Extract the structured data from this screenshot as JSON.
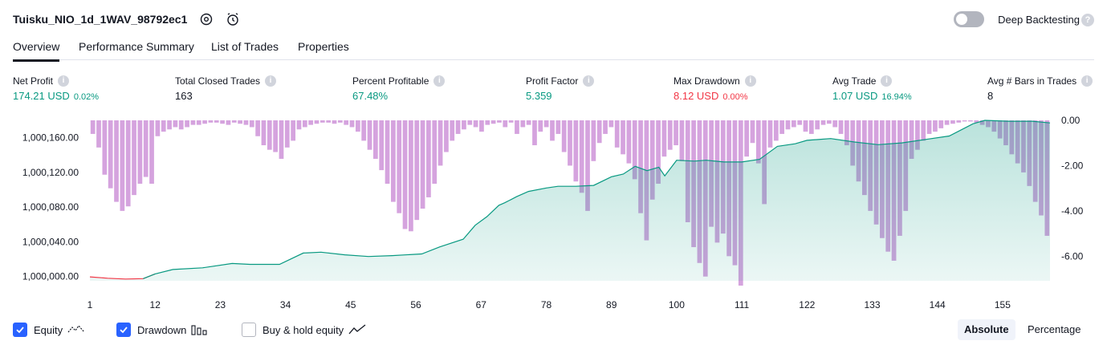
{
  "header": {
    "title": "Tuisku_NIO_1d_1WAV_98792ec1",
    "deep_backtesting_label": "Deep Backtesting",
    "help_glyph": "?"
  },
  "tabs": [
    {
      "label": "Overview",
      "active": true
    },
    {
      "label": "Performance Summary",
      "active": false
    },
    {
      "label": "List of Trades",
      "active": false
    },
    {
      "label": "Properties",
      "active": false
    }
  ],
  "stats": [
    {
      "label": "Net Profit",
      "value": "174.21 USD",
      "sub": "0.02%",
      "color": "#089981"
    },
    {
      "label": "Total Closed Trades",
      "value": "163",
      "sub": "",
      "color": "#131722"
    },
    {
      "label": "Percent Profitable",
      "value": "67.48%",
      "sub": "",
      "color": "#089981"
    },
    {
      "label": "Profit Factor",
      "value": "5.359",
      "sub": "",
      "color": "#089981"
    },
    {
      "label": "Max Drawdown",
      "value": "8.12 USD",
      "sub": "0.00%",
      "color": "#f23645"
    },
    {
      "label": "Avg Trade",
      "value": "1.07 USD",
      "sub": "16.94%",
      "color": "#089981"
    },
    {
      "label": "Avg # Bars in Trades",
      "value": "8",
      "sub": "",
      "color": "#131722"
    }
  ],
  "info_glyph": "i",
  "chart_data": {
    "type": "area",
    "x_ticks": [
      1,
      12,
      23,
      34,
      45,
      56,
      67,
      78,
      89,
      100,
      111,
      122,
      133,
      144,
      155
    ],
    "x_range": [
      1,
      163
    ],
    "left_axis": {
      "ticks": [
        "1,000,000.00",
        "1,000,040.00",
        "1,000,080.00",
        "1,000,120.00",
        "1,000,160.00"
      ],
      "tick_values": [
        1000000,
        1000040,
        1000080,
        1000120,
        1000160
      ],
      "range": [
        999995,
        1000180
      ]
    },
    "right_axis": {
      "ticks": [
        "0.00",
        "-2.00",
        "-4.00",
        "-6.00"
      ],
      "tick_values": [
        0,
        -2,
        -4,
        -6
      ],
      "range": [
        -7.3,
        0
      ]
    },
    "series": [
      {
        "name": "Equity",
        "axis": "left",
        "color": "#089981",
        "negative_color": "#f23645",
        "x": [
          1,
          4,
          7,
          10,
          12,
          15,
          20,
          25,
          28,
          33,
          37,
          40,
          44,
          48,
          52,
          57,
          60,
          64,
          66,
          68,
          70,
          71,
          73,
          75,
          78,
          80,
          83,
          86,
          89,
          91,
          93,
          95,
          97,
          98,
          100,
          103,
          105,
          108,
          111,
          114,
          117,
          120,
          122,
          126,
          130,
          134,
          138,
          142,
          146,
          150,
          152,
          156,
          160,
          163
        ],
        "y": [
          999999.5,
          999998,
          999997,
          999997.5,
          1000003,
          1000008,
          1000010,
          1000015,
          1000014,
          1000014,
          1000027,
          1000028,
          1000025,
          1000023,
          1000024,
          1000026,
          1000034,
          1000043,
          1000059,
          1000069,
          1000082,
          1000085,
          1000092,
          1000098,
          1000102,
          1000104,
          1000104,
          1000105,
          1000115,
          1000118,
          1000127,
          1000122,
          1000126,
          1000116,
          1000134,
          1000133,
          1000134,
          1000132,
          1000132,
          1000135,
          1000150,
          1000153,
          1000157,
          1000159,
          1000155,
          1000152,
          1000154,
          1000158,
          1000162,
          1000176,
          1000180,
          1000179,
          1000179,
          1000177
        ]
      },
      {
        "name": "Drawdown",
        "axis": "right",
        "color": "#ce93d8",
        "values": [
          -0.6,
          -1.2,
          -2.4,
          -3.0,
          -3.6,
          -4.0,
          -3.8,
          -3.3,
          -2.8,
          -2.5,
          -2.8,
          -0.7,
          -0.5,
          -0.4,
          -0.3,
          -0.4,
          -0.3,
          -0.2,
          -0.2,
          -0.15,
          -0.1,
          -0.1,
          -0.15,
          -0.2,
          -0.1,
          -0.15,
          -0.2,
          -0.3,
          -0.7,
          -1.1,
          -1.3,
          -1.4,
          -1.7,
          -1.2,
          -0.9,
          -0.4,
          -0.3,
          -0.2,
          -0.15,
          -0.1,
          -0.1,
          -0.15,
          -0.1,
          -0.2,
          -0.3,
          -0.5,
          -0.9,
          -1.3,
          -1.7,
          -2.2,
          -2.8,
          -3.6,
          -4.1,
          -4.8,
          -4.9,
          -4.4,
          -3.9,
          -3.4,
          -2.8,
          -2.0,
          -1.4,
          -0.9,
          -0.6,
          -0.4,
          -0.2,
          -0.3,
          -0.5,
          -0.2,
          -0.15,
          -0.1,
          -0.3,
          -0.1,
          -0.6,
          -0.3,
          -0.2,
          -1.1,
          -0.5,
          -0.3,
          -0.9,
          -0.6,
          -1.4,
          -2.0,
          -2.7,
          -3.2,
          -4.0,
          -1.8,
          -1.0,
          -0.6,
          -0.3,
          -1.2,
          -1.5,
          -1.9,
          -2.6,
          -4.1,
          -5.3,
          -3.5,
          -2.8,
          -1.6,
          -1.3,
          -1.1,
          -1.8,
          -4.5,
          -5.6,
          -6.3,
          -6.9,
          -4.7,
          -5.4,
          -5.0,
          -6.0,
          -6.4,
          -7.3,
          -1.6,
          -1.0,
          -1.9,
          -3.7,
          -1.2,
          -0.9,
          -0.6,
          -0.4,
          -0.3,
          -0.2,
          -0.5,
          -0.6,
          -0.4,
          -0.2,
          -0.15,
          -0.3,
          -0.6,
          -1.1,
          -2.0,
          -2.7,
          -3.3,
          -4.0,
          -4.6,
          -5.2,
          -5.8,
          -6.2,
          -5.1,
          -4.0,
          -1.7,
          -1.3,
          -0.9,
          -0.6,
          -0.5,
          -0.35,
          -0.2,
          -0.15,
          -0.1,
          -0.05,
          -0.05,
          -0.1,
          -0.2,
          -0.3,
          -0.5,
          -0.8,
          -1.1,
          -1.5,
          -1.9,
          -2.3,
          -2.9,
          -3.6,
          -4.2,
          -5.1
        ]
      }
    ]
  },
  "footer": {
    "equity_label": "Equity",
    "drawdown_label": "Drawdown",
    "buyhold_label": "Buy & hold equity",
    "absolute_label": "Absolute",
    "percentage_label": "Percentage"
  }
}
